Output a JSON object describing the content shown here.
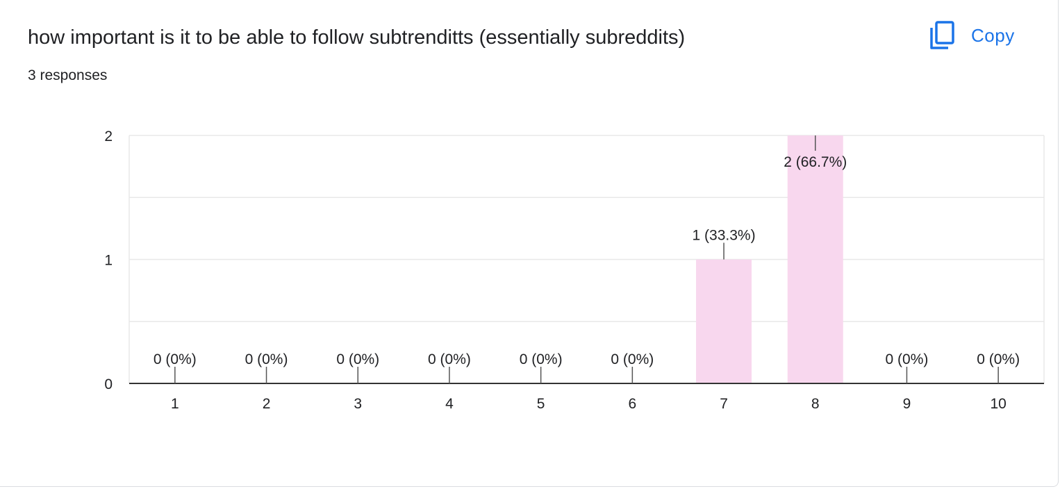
{
  "header": {
    "title": "how important is it to be able to follow subtrenditts (essentially subreddits)",
    "responses": "3 responses",
    "copy_label": "Copy",
    "copy_icon": "copy-icon"
  },
  "colors": {
    "bar": "#f8d7ee",
    "accent": "#1a73e8",
    "gridline": "#e8e8e8",
    "axis": "#333333",
    "text": "#202124"
  },
  "chart_data": {
    "type": "bar",
    "title": "",
    "xlabel": "",
    "ylabel": "",
    "categories": [
      "1",
      "2",
      "3",
      "4",
      "5",
      "6",
      "7",
      "8",
      "9",
      "10"
    ],
    "values": [
      0,
      0,
      0,
      0,
      0,
      0,
      1,
      2,
      0,
      0
    ],
    "data_labels": [
      "0 (0%)",
      "0 (0%)",
      "0 (0%)",
      "0 (0%)",
      "0 (0%)",
      "0 (0%)",
      "1 (33.3%)",
      "2 (66.7%)",
      "0 (0%)",
      "0 (0%)"
    ],
    "ylim": [
      0,
      2
    ],
    "yticks": [
      "0",
      "1",
      "2"
    ],
    "grid": true,
    "legend": "none"
  }
}
